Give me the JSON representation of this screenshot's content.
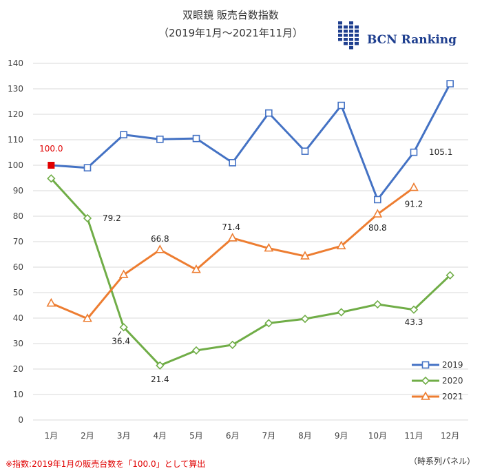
{
  "title": "双眼鏡 販売台数指数",
  "subtitle": "（2019年1月〜2021年11月）",
  "logo": {
    "text": "BCN Ranking",
    "color": "#1f3f8f"
  },
  "footnote_left": "※指数:2019年1月の販売台数を「100.0」として算出",
  "footnote_right": "（時系列パネル）",
  "footnote_color": "#e00000",
  "chart_data": {
    "type": "line",
    "categories": [
      "1月",
      "2月",
      "3月",
      "4月",
      "5月",
      "6月",
      "7月",
      "8月",
      "9月",
      "10月",
      "11月",
      "12月"
    ],
    "ylim": [
      0,
      140
    ],
    "yticks": [
      0,
      10,
      20,
      30,
      40,
      50,
      60,
      70,
      80,
      90,
      100,
      110,
      120,
      130,
      140
    ],
    "grid": true,
    "legend_position": "bottom-right",
    "series": [
      {
        "name": "2019",
        "color": "#4472c4",
        "marker": "square",
        "values": [
          100.0,
          99.0,
          112.0,
          110.2,
          110.5,
          101.0,
          120.5,
          105.5,
          123.5,
          86.5,
          105.1,
          132.0
        ]
      },
      {
        "name": "2020",
        "color": "#70ad47",
        "marker": "diamond",
        "values": [
          94.8,
          79.2,
          36.4,
          21.4,
          27.3,
          29.5,
          38.0,
          39.7,
          42.3,
          45.4,
          43.3,
          56.8
        ]
      },
      {
        "name": "2021",
        "color": "#ed7d31",
        "marker": "triangle",
        "values": [
          45.8,
          39.8,
          57.0,
          66.8,
          59.0,
          71.4,
          67.4,
          64.3,
          68.3,
          80.8,
          91.2,
          null
        ]
      }
    ],
    "base_point": {
      "label": "100.0",
      "color": "#e00000"
    },
    "data_labels": [
      {
        "text": "79.2",
        "series": 1,
        "index": 1
      },
      {
        "text": "36.4",
        "series": 1,
        "index": 2
      },
      {
        "text": "21.4",
        "series": 1,
        "index": 3
      },
      {
        "text": "43.3",
        "series": 1,
        "index": 10
      },
      {
        "text": "66.8",
        "series": 2,
        "index": 3
      },
      {
        "text": "71.4",
        "series": 2,
        "index": 5
      },
      {
        "text": "80.8",
        "series": 2,
        "index": 9
      },
      {
        "text": "91.2",
        "series": 2,
        "index": 10
      },
      {
        "text": "105.1",
        "series": 0,
        "index": 10
      }
    ]
  }
}
